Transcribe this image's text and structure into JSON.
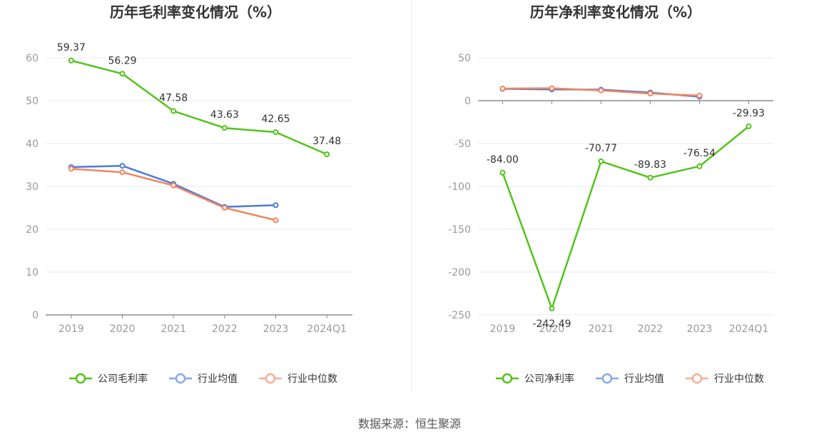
{
  "chart_data": [
    {
      "type": "line",
      "title": "历年毛利率变化情况（%）",
      "categories": [
        "2019",
        "2020",
        "2021",
        "2022",
        "2023",
        "2024Q1"
      ],
      "ylim": [
        0,
        60
      ],
      "yticks": [
        0,
        10,
        20,
        30,
        40,
        50,
        60
      ],
      "grid": true,
      "legend_position": "bottom-center",
      "series": [
        {
          "name": "公司毛利率",
          "color": "#52c41a",
          "values": [
            59.37,
            56.29,
            47.58,
            43.63,
            42.65,
            37.48
          ],
          "labels": [
            "59.37",
            "56.29",
            "47.58",
            "43.63",
            "42.65",
            "37.48"
          ]
        },
        {
          "name": "行业均值",
          "color": "#4a7bdc",
          "values": [
            34.5,
            34.8,
            30.6,
            25.2,
            25.6,
            null
          ]
        },
        {
          "name": "行业中位数",
          "color": "#f4845f",
          "values": [
            34.1,
            33.3,
            30.2,
            25.0,
            22.1,
            null
          ]
        }
      ]
    },
    {
      "type": "line",
      "title": "历年净利率变化情况（%）",
      "categories": [
        "2019",
        "2020",
        "2021",
        "2022",
        "2023",
        "2024Q1"
      ],
      "ylim": [
        -250,
        50
      ],
      "yticks": [
        -250,
        -200,
        -150,
        -100,
        -50,
        0,
        50
      ],
      "grid": true,
      "legend_position": "bottom-center",
      "series": [
        {
          "name": "公司净利率",
          "color": "#52c41a",
          "values": [
            -84.0,
            -242.49,
            -70.77,
            -89.83,
            -76.54,
            -29.93
          ],
          "labels": [
            "-84.00",
            "-242.49",
            "-70.77",
            "-89.83",
            "-76.54",
            "-29.93"
          ]
        },
        {
          "name": "行业均值",
          "color": "#4a7bdc",
          "values": [
            13.8,
            13.2,
            12.9,
            9.5,
            4.6,
            null
          ]
        },
        {
          "name": "行业中位数",
          "color": "#f4845f",
          "values": [
            14.2,
            14.5,
            12.0,
            8.3,
            5.9,
            null
          ]
        }
      ]
    }
  ],
  "source": "数据来源：恒生聚源"
}
